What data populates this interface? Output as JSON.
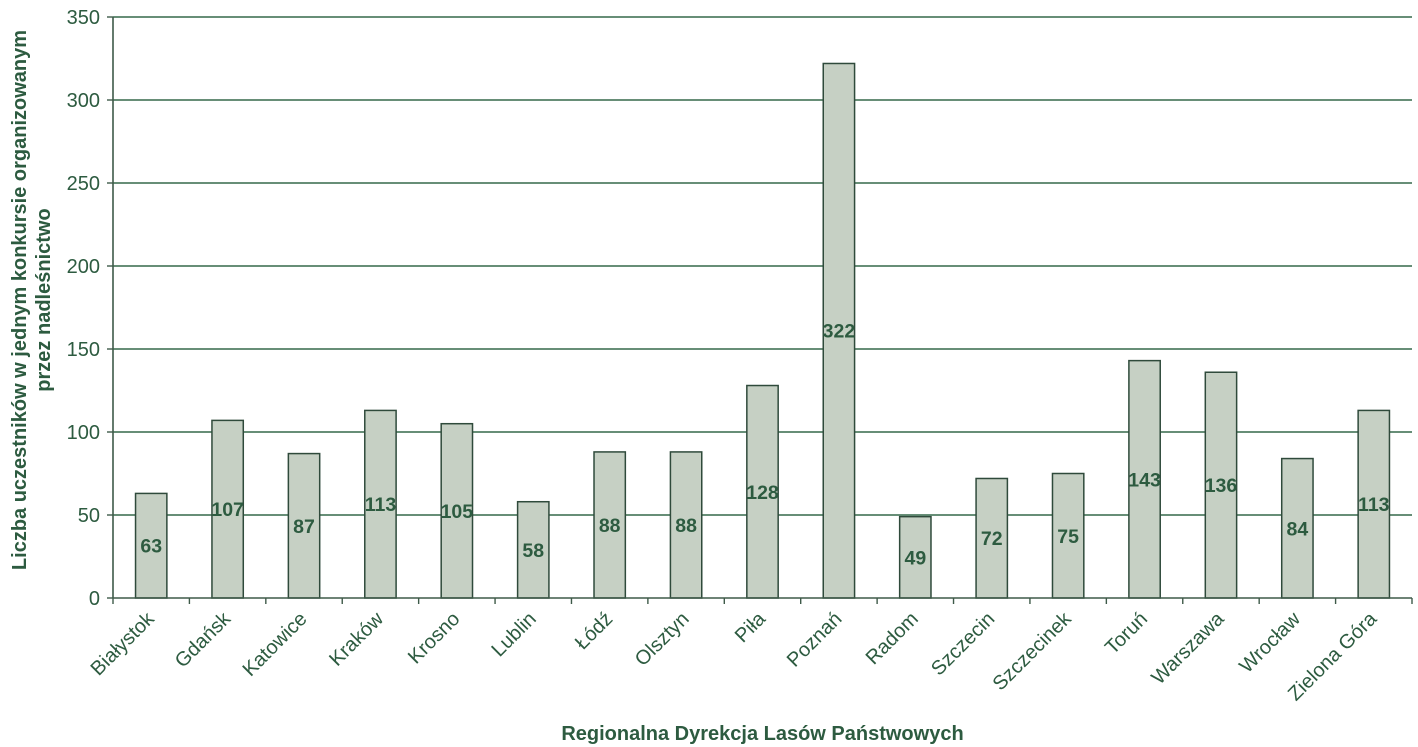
{
  "chart_data": {
    "type": "bar",
    "title": "",
    "xlabel": "Regionalna Dyrekcja Lasów Państwowych",
    "ylabel": "Liczba uczestników w jednym konkursie organizowanym przez nadleśnictwo",
    "categories": [
      "Białystok",
      "Gdańsk",
      "Katowice",
      "Kraków",
      "Krosno",
      "Lublin",
      "Łódź",
      "Olsztyn",
      "Piła",
      "Poznań",
      "Radom",
      "Szczecin",
      "Szczecinek",
      "Toruń",
      "Warszawa",
      "Wrocław",
      "Zielona Góra"
    ],
    "values": [
      63,
      107,
      87,
      113,
      105,
      58,
      88,
      88,
      128,
      322,
      49,
      72,
      75,
      143,
      136,
      84,
      113
    ],
    "ylim": [
      0,
      350
    ],
    "yticks": [
      0,
      50,
      100,
      150,
      200,
      250,
      300,
      350
    ],
    "grid": true,
    "legend": "none",
    "data_label_position": "center",
    "colors": {
      "text": "#2d5b40",
      "grid": "#35684a",
      "axis": "#3e5a49",
      "bar_fill": "#c6d0c4",
      "bar_stroke": "#2f4a3b"
    }
  }
}
